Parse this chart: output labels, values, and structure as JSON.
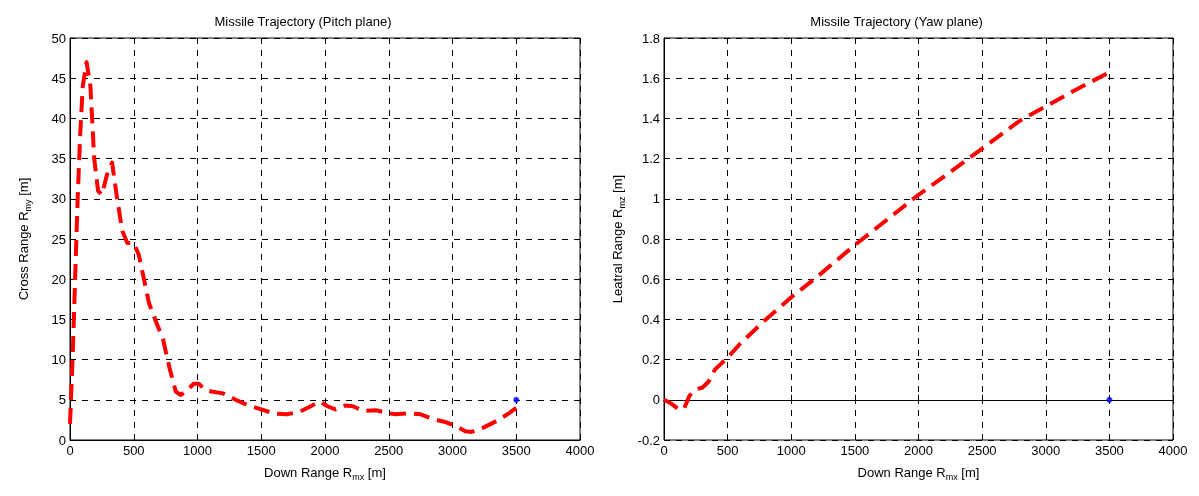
{
  "chart_data": [
    {
      "type": "line",
      "title": "Missile Trajectory (Pitch plane)",
      "xlabel": "Down Range R$_{mx}$ [m]",
      "ylabel": "Cross Range R$_{my}$ [m]",
      "xlim": [
        0,
        4000
      ],
      "xticks": [
        0,
        500,
        1000,
        1500,
        2000,
        2500,
        3000,
        3500,
        4000
      ],
      "ylim": [
        0,
        50
      ],
      "yticks": [
        0,
        5,
        10,
        15,
        20,
        25,
        30,
        35,
        40,
        45,
        50
      ],
      "grid": true,
      "line_style": "dashed",
      "marker": "none",
      "series": [
        {
          "color": "#ff0000",
          "x": [
            0,
            20,
            40,
            60,
            80,
            100,
            130,
            160,
            190,
            220,
            250,
            290,
            330,
            370,
            410,
            450,
            500,
            540,
            580,
            620,
            680,
            730,
            780,
            830,
            870,
            920,
            970,
            1010,
            1060,
            1120,
            1200,
            1300,
            1400,
            1500,
            1600,
            1700,
            1800,
            1900,
            1960,
            2020,
            2080,
            2160,
            2220,
            2300,
            2400,
            2480,
            2550,
            2650,
            2750,
            2850,
            2950,
            3030,
            3100,
            3150,
            3250,
            3350,
            3450,
            3500
          ],
          "values": [
            2,
            10,
            20,
            30,
            38,
            44,
            47,
            44,
            35,
            31,
            30.5,
            33,
            34.5,
            30,
            26,
            24.5,
            24.5,
            23,
            20,
            17,
            14.5,
            12.5,
            9,
            6,
            5.6,
            6.2,
            7,
            7,
            6.2,
            6,
            5.8,
            5,
            4.3,
            3.8,
            3.3,
            3.2,
            3.5,
            4.3,
            4.8,
            4.2,
            3.8,
            4.3,
            4.2,
            3.6,
            3.7,
            3.4,
            3.2,
            3.3,
            3.2,
            2.6,
            2.2,
            1.7,
            1.1,
            1,
            1.6,
            2.4,
            3.4,
            4
          ]
        },
        {
          "type": "scatter",
          "marker": "circle",
          "color": "#0000ff",
          "x": [
            3500
          ],
          "values": [
            5
          ]
        }
      ]
    },
    {
      "type": "line",
      "title": "Missile Trajectory (Yaw plane)",
      "xlabel": "Down Range R$_{mx}$ [m]",
      "ylabel": "Leatral Range R$_{mz}$ [m]",
      "xlim": [
        0,
        4000
      ],
      "xticks": [
        0,
        500,
        1000,
        1500,
        2000,
        2500,
        3000,
        3500,
        4000
      ],
      "ylim": [
        -0.2,
        1.8
      ],
      "yticks": [
        -0.2,
        0,
        0.2,
        0.4,
        0.6,
        0.8,
        1,
        1.2,
        1.4,
        1.6,
        1.8
      ],
      "grid": true,
      "line_style": "dashed",
      "marker": "none",
      "series": [
        {
          "color": "#ff0000",
          "x": [
            0,
            60,
            120,
            160,
            200,
            240,
            300,
            350,
            400,
            450,
            500,
            600,
            700,
            800,
            1000,
            1200,
            1500,
            1800,
            2000,
            2200,
            2500,
            2800,
            3000,
            3200,
            3500
          ],
          "values": [
            0,
            -0.02,
            -0.05,
            -0.04,
            0.02,
            0.05,
            0.06,
            0.09,
            0.15,
            0.18,
            0.21,
            0.28,
            0.34,
            0.4,
            0.51,
            0.61,
            0.77,
            0.92,
            1.02,
            1.11,
            1.25,
            1.39,
            1.46,
            1.53,
            1.63
          ]
        },
        {
          "type": "scatter",
          "marker": "circle",
          "color": "#0000ff",
          "x": [
            3500
          ],
          "values": [
            0
          ]
        }
      ]
    }
  ]
}
